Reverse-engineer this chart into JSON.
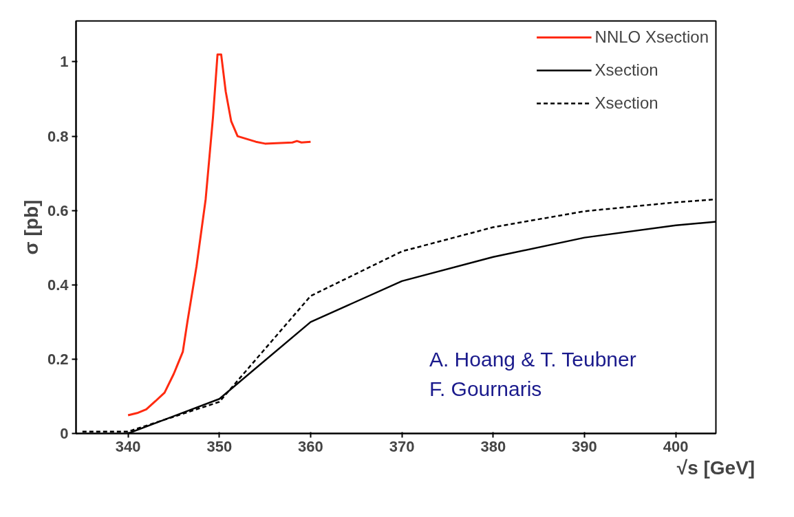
{
  "chart_data": {
    "type": "line",
    "xlabel": "√s [GeV]",
    "ylabel": "σ [pb]",
    "xlim": [
      334.3,
      404.4
    ],
    "ylim": [
      0,
      1.11
    ],
    "xticks": [
      340,
      350,
      360,
      370,
      380,
      390,
      400
    ],
    "yticks": [
      0,
      {
        "value": 0.2,
        "label": "0.2"
      },
      {
        "value": 0.4,
        "label": "0.4"
      },
      {
        "value": 0.6,
        "label": "0.6"
      },
      {
        "value": 0.8,
        "label": "0.8"
      },
      1
    ],
    "grid": false,
    "legend": "top right",
    "series": [
      {
        "name": "NNLO Xsection",
        "color": "#ff2a10",
        "line_style": "solid",
        "x": [
          340,
          341,
          342,
          343,
          344,
          345,
          346,
          346.5,
          347.5,
          348.5,
          349.3,
          349.8,
          350.2,
          350.7,
          351.3,
          352,
          354,
          355,
          358,
          358.5,
          359,
          360
        ],
        "values": [
          0.049,
          0.055,
          0.065,
          0.087,
          0.11,
          0.16,
          0.22,
          0.3,
          0.45,
          0.63,
          0.85,
          1.02,
          1.02,
          0.92,
          0.84,
          0.8,
          0.785,
          0.78,
          0.783,
          0.787,
          0.783,
          0.785
        ]
      },
      {
        "name": "Xsection",
        "color": "#000000",
        "line_style": "solid",
        "x": [
          340,
          350,
          360,
          370,
          380,
          390,
          400,
          404.4
        ],
        "values": [
          0.0,
          0.093,
          0.3,
          0.41,
          0.475,
          0.527,
          0.56,
          0.57
        ]
      },
      {
        "name": "Xsection",
        "color": "#000000",
        "line_style": "dashed",
        "x": [
          335,
          340,
          350,
          360,
          370,
          380,
          390,
          400,
          404.4
        ],
        "values": [
          0.005,
          0.005,
          0.085,
          0.37,
          0.49,
          0.555,
          0.598,
          0.622,
          0.63
        ]
      }
    ],
    "annotations": [
      "A. Hoang & T. Teubner",
      "F. Gournaris"
    ]
  }
}
